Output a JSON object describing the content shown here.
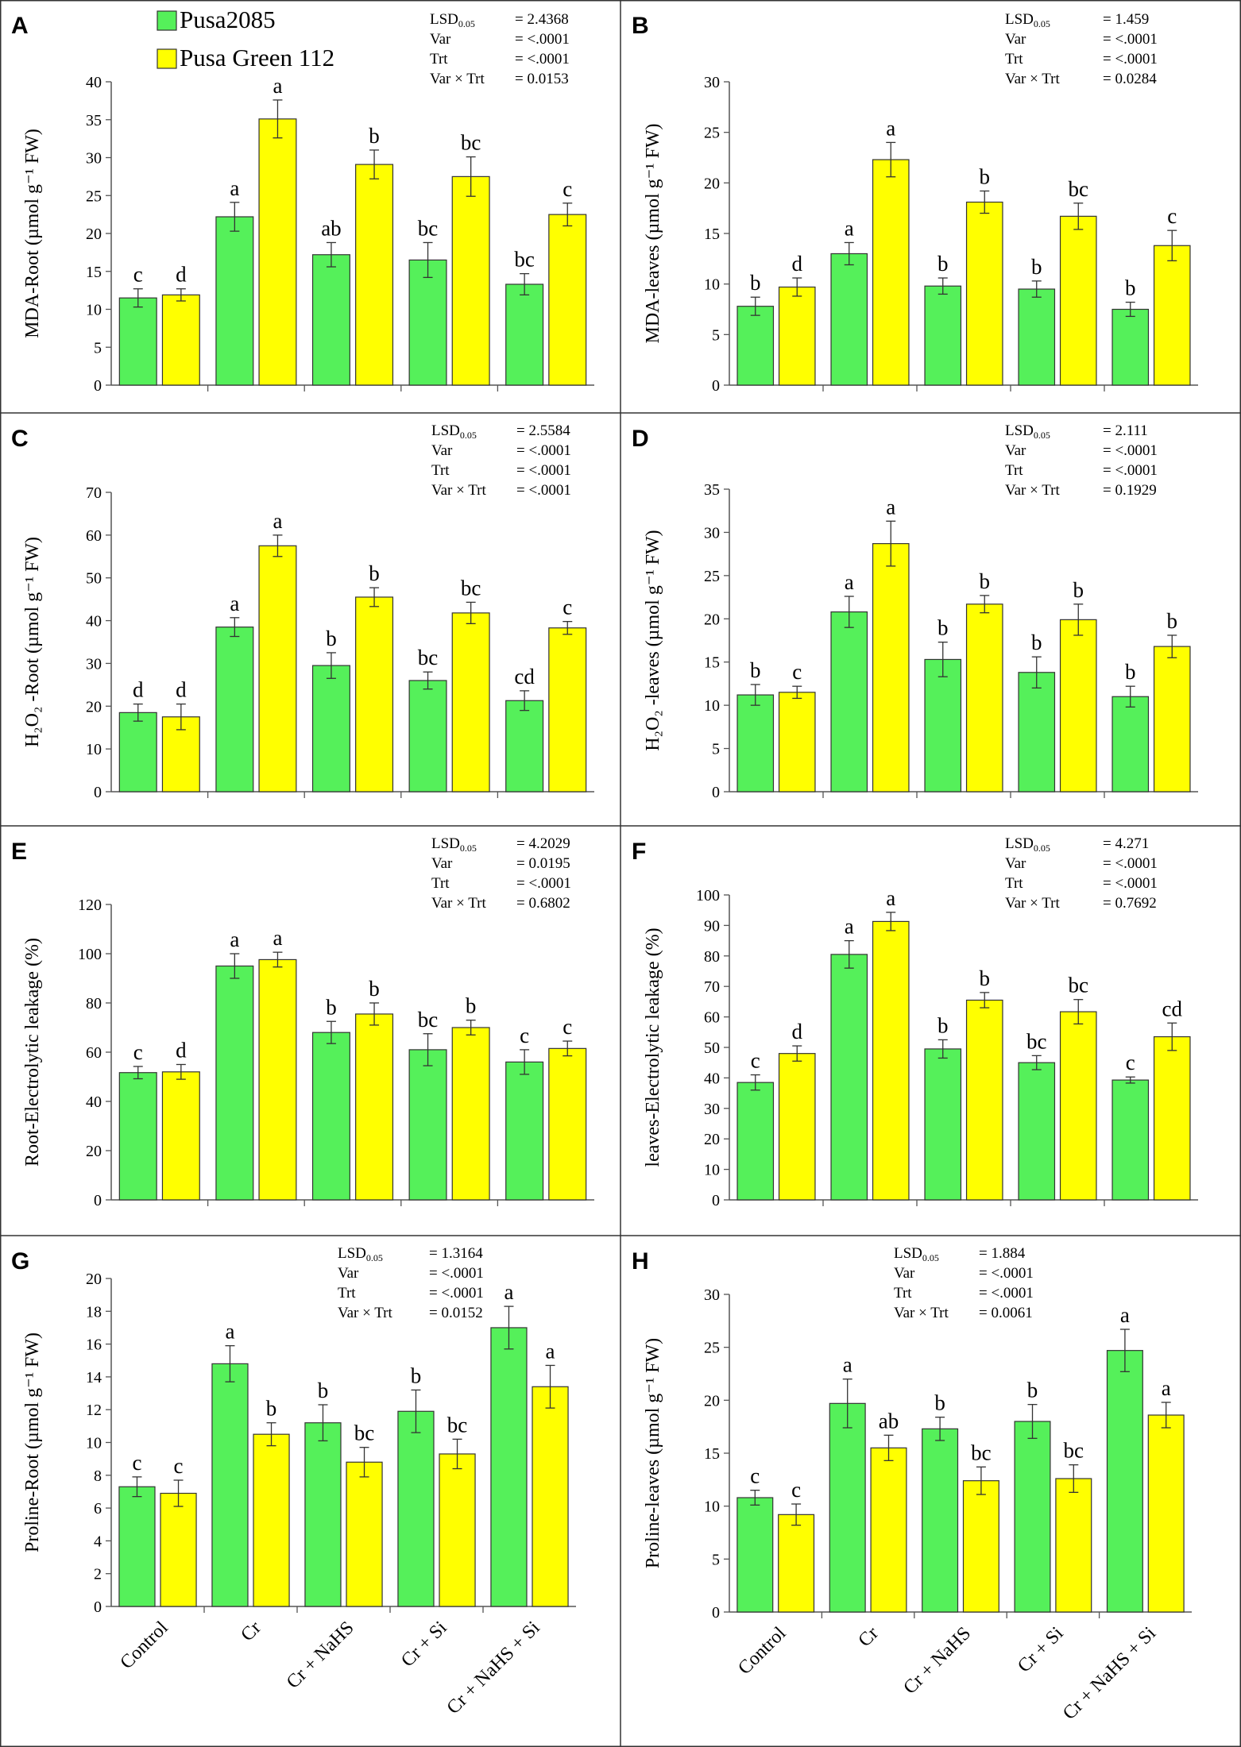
{
  "legend": {
    "items": [
      {
        "label": "Pusa2085",
        "color": "#55F05A"
      },
      {
        "label": "Pusa Green 112",
        "color": "#FFFF00"
      }
    ]
  },
  "chart_data": [
    {
      "panel": "A",
      "type": "bar",
      "ylabel": "MDA-Root (µmol g⁻¹ FW)",
      "ylim": [
        0,
        40
      ],
      "ystep": 5,
      "categories": [
        "Control",
        "Cr",
        "Cr + NaHS",
        "Cr + Si",
        "Cr + NaHS + Si"
      ],
      "series": [
        {
          "name": "Pusa2085",
          "values": [
            11.5,
            22.2,
            17.2,
            16.5,
            13.3
          ],
          "errors": [
            1.2,
            1.9,
            1.6,
            2.3,
            1.4
          ],
          "letters": [
            "c",
            "a",
            "ab",
            "bc",
            "bc"
          ]
        },
        {
          "name": "Pusa Green 112",
          "values": [
            11.9,
            35.1,
            29.1,
            27.5,
            22.5
          ],
          "errors": [
            0.8,
            2.5,
            1.9,
            2.6,
            1.5
          ],
          "letters": [
            "d",
            "a",
            "b",
            "bc",
            "c"
          ]
        }
      ],
      "stats": [
        [
          "LSD0.05",
          "= 2.4368"
        ],
        [
          "Var",
          "= <.0001"
        ],
        [
          "Trt",
          "= <.0001"
        ],
        [
          "Var × Trt",
          "= 0.0153"
        ]
      ]
    },
    {
      "panel": "B",
      "type": "bar",
      "ylabel": "MDA-leaves (µmol g⁻¹ FW)",
      "ylim": [
        0,
        30
      ],
      "ystep": 5,
      "categories": [
        "Control",
        "Cr",
        "Cr + NaHS",
        "Cr + Si",
        "Cr + NaHS + Si"
      ],
      "series": [
        {
          "name": "Pusa2085",
          "values": [
            7.8,
            13.0,
            9.8,
            9.5,
            7.5
          ],
          "errors": [
            0.9,
            1.1,
            0.8,
            0.8,
            0.7
          ],
          "letters": [
            "b",
            "a",
            "b",
            "b",
            "b"
          ]
        },
        {
          "name": "Pusa Green 112",
          "values": [
            9.7,
            22.3,
            18.1,
            16.7,
            13.8
          ],
          "errors": [
            0.9,
            1.7,
            1.1,
            1.3,
            1.5
          ],
          "letters": [
            "d",
            "a",
            "b",
            "bc",
            "c"
          ]
        }
      ],
      "stats": [
        [
          "LSD0.05",
          "= 1.459"
        ],
        [
          "Var",
          "= <.0001"
        ],
        [
          "Trt",
          "= <.0001"
        ],
        [
          "Var × Trt",
          "= 0.0284"
        ]
      ]
    },
    {
      "panel": "C",
      "type": "bar",
      "ylabel": "H₂O₂ -Root (µmol g⁻¹ FW)",
      "ylim": [
        0,
        70
      ],
      "ystep": 10,
      "categories": [
        "Control",
        "Cr",
        "Cr + NaHS",
        "Cr + Si",
        "Cr + NaHS + Si"
      ],
      "series": [
        {
          "name": "Pusa2085",
          "values": [
            18.5,
            38.5,
            29.5,
            26.0,
            21.3
          ],
          "errors": [
            2.0,
            2.2,
            3.0,
            2.0,
            2.3
          ],
          "letters": [
            "d",
            "a",
            "b",
            "bc",
            "cd"
          ]
        },
        {
          "name": "Pusa Green 112",
          "values": [
            17.5,
            57.5,
            45.5,
            41.8,
            38.3
          ],
          "errors": [
            3.0,
            2.5,
            2.2,
            2.5,
            1.5
          ],
          "letters": [
            "d",
            "a",
            "b",
            "bc",
            "c"
          ]
        }
      ],
      "stats": [
        [
          "LSD0.05",
          "= 2.5584"
        ],
        [
          "Var",
          "= <.0001"
        ],
        [
          "Trt",
          "= <.0001"
        ],
        [
          "Var × Trt",
          "= <.0001"
        ]
      ]
    },
    {
      "panel": "D",
      "type": "bar",
      "ylabel": "H₂O₂ -leaves (µmol g⁻¹ FW)",
      "ylim": [
        0,
        35
      ],
      "ystep": 5,
      "categories": [
        "Control",
        "Cr",
        "Cr + NaHS",
        "Cr + Si",
        "Cr + NaHS + Si"
      ],
      "series": [
        {
          "name": "Pusa2085",
          "values": [
            11.2,
            20.8,
            15.3,
            13.8,
            11.0
          ],
          "errors": [
            1.2,
            1.8,
            2.0,
            1.8,
            1.2
          ],
          "letters": [
            "b",
            "a",
            "b",
            "b",
            "b"
          ]
        },
        {
          "name": "Pusa Green 112",
          "values": [
            11.5,
            28.7,
            21.7,
            19.9,
            16.8
          ],
          "errors": [
            0.7,
            2.6,
            1.0,
            1.8,
            1.3
          ],
          "letters": [
            "c",
            "a",
            "b",
            "b",
            "b"
          ]
        }
      ],
      "stats": [
        [
          "LSD0.05",
          "= 2.111"
        ],
        [
          "Var",
          "= <.0001"
        ],
        [
          "Trt",
          "= <.0001"
        ],
        [
          "Var × Trt",
          "= 0.1929"
        ]
      ]
    },
    {
      "panel": "E",
      "type": "bar",
      "ylabel": "Root-Electrolytic leakage (%)",
      "ylim": [
        0,
        120
      ],
      "ystep": 20,
      "categories": [
        "Control",
        "Cr",
        "Cr + NaHS",
        "Cr + Si",
        "Cr + NaHS + Si"
      ],
      "series": [
        {
          "name": "Pusa2085",
          "values": [
            51.7,
            95.0,
            68.0,
            61.0,
            56.0
          ],
          "errors": [
            2.5,
            5.0,
            4.5,
            6.5,
            5.0
          ],
          "letters": [
            "c",
            "a",
            "b",
            "bc",
            "c"
          ]
        },
        {
          "name": "Pusa Green 112",
          "values": [
            52.0,
            97.6,
            75.5,
            70.0,
            61.5
          ],
          "errors": [
            3.0,
            3.0,
            4.5,
            3.0,
            3.0
          ],
          "letters": [
            "d",
            "a",
            "b",
            "b",
            "c"
          ]
        }
      ],
      "stats": [
        [
          "LSD0.05",
          "= 4.2029"
        ],
        [
          "Var",
          "= 0.0195"
        ],
        [
          "Trt",
          "= <.0001"
        ],
        [
          "Var × Trt",
          "= 0.6802"
        ]
      ]
    },
    {
      "panel": "F",
      "type": "bar",
      "ylabel": "leaves-Electrolytic leakage (%)",
      "ylim": [
        0,
        100
      ],
      "ystep": 10,
      "categories": [
        "Control",
        "Cr",
        "Cr + NaHS",
        "Cr + Si",
        "Cr + NaHS + Si"
      ],
      "series": [
        {
          "name": "Pusa2085",
          "values": [
            38.5,
            80.5,
            49.5,
            45.0,
            39.3
          ],
          "errors": [
            2.5,
            4.5,
            3.0,
            2.3,
            1.0
          ],
          "letters": [
            "c",
            "a",
            "b",
            "bc",
            "c"
          ]
        },
        {
          "name": "Pusa Green 112",
          "values": [
            48.0,
            91.3,
            65.5,
            61.7,
            53.5
          ],
          "errors": [
            2.5,
            3.0,
            2.5,
            4.0,
            4.5
          ],
          "letters": [
            "d",
            "a",
            "b",
            "bc",
            "cd"
          ]
        }
      ],
      "stats": [
        [
          "LSD0.05",
          "= 4.271"
        ],
        [
          "Var",
          "= <.0001"
        ],
        [
          "Trt",
          "= <.0001"
        ],
        [
          "Var × Trt",
          "= 0.7692"
        ]
      ]
    },
    {
      "panel": "G",
      "type": "bar",
      "ylabel": "Proline-Root (µmol g⁻¹ FW)",
      "ylim": [
        0,
        20
      ],
      "ystep": 2,
      "categories": [
        "Control",
        "Cr",
        "Cr + NaHS",
        "Cr + Si",
        "Cr + NaHS + Si"
      ],
      "series": [
        {
          "name": "Pusa2085",
          "values": [
            7.3,
            14.8,
            11.2,
            11.9,
            17.0
          ],
          "errors": [
            0.6,
            1.1,
            1.1,
            1.3,
            1.3
          ],
          "letters": [
            "c",
            "a",
            "b",
            "b",
            "a"
          ]
        },
        {
          "name": "Pusa Green 112",
          "values": [
            6.9,
            10.5,
            8.8,
            9.3,
            13.4
          ],
          "errors": [
            0.8,
            0.7,
            0.9,
            0.9,
            1.3
          ],
          "letters": [
            "c",
            "b",
            "bc",
            "bc",
            "a"
          ]
        }
      ],
      "stats": [
        [
          "LSD0.05",
          "= 1.3164"
        ],
        [
          "Var",
          "= <.0001"
        ],
        [
          "Trt",
          "= <.0001"
        ],
        [
          "Var × Trt",
          "= 0.0152"
        ]
      ]
    },
    {
      "panel": "H",
      "type": "bar",
      "ylabel": "Proline-leaves (µmol g⁻¹ FW)",
      "ylim": [
        0,
        30
      ],
      "ystep": 5,
      "categories": [
        "Control",
        "Cr",
        "Cr + NaHS",
        "Cr + Si",
        "Cr + NaHS + Si"
      ],
      "series": [
        {
          "name": "Pusa2085",
          "values": [
            10.8,
            19.7,
            17.3,
            18.0,
            24.7
          ],
          "errors": [
            0.7,
            2.3,
            1.1,
            1.6,
            2.0
          ],
          "letters": [
            "c",
            "a",
            "b",
            "b",
            "a"
          ]
        },
        {
          "name": "Pusa Green 112",
          "values": [
            9.2,
            15.5,
            12.4,
            12.6,
            18.6
          ],
          "errors": [
            1.0,
            1.2,
            1.3,
            1.3,
            1.2
          ],
          "letters": [
            "c",
            "ab",
            "bc",
            "bc",
            "a"
          ]
        }
      ],
      "stats": [
        [
          "LSD0.05",
          "= 1.884"
        ],
        [
          "Var",
          "= <.0001"
        ],
        [
          "Trt",
          "= <.0001"
        ],
        [
          "Var × Trt",
          "= 0.0061"
        ]
      ]
    }
  ]
}
